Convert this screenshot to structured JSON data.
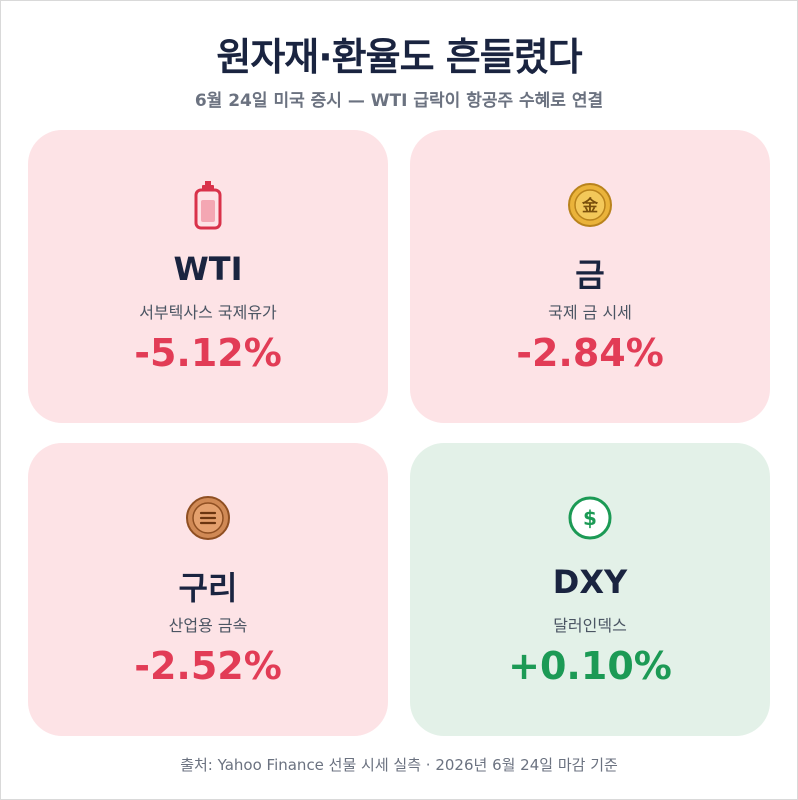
{
  "header": {
    "title": "원자재·환율도 흔들렸다",
    "subtitle": "6월 24일 미국 증시 — WTI 급락이 항공주 수혜로 연결"
  },
  "cards": [
    {
      "name": "WTI",
      "desc": "서부텍사스 국제유가",
      "change": "-5.12%",
      "icon": "battery-icon",
      "tone": "negative"
    },
    {
      "name": "금",
      "desc": "국제 금 시세",
      "change": "-2.84%",
      "icon": "gold-coin-icon",
      "icon_text": "金",
      "tone": "negative"
    },
    {
      "name": "구리",
      "desc": "산업용 금속",
      "change": "-2.52%",
      "icon": "copper-coin-icon",
      "tone": "negative"
    },
    {
      "name": "DXY",
      "desc": "달러인덱스",
      "change": "+0.10%",
      "icon": "dollar-coin-icon",
      "icon_text": "$",
      "tone": "positive"
    }
  ],
  "footer": {
    "source": "출처: Yahoo Finance 선물 시세 실측 · 2026년 6월 24일 마감 기준"
  },
  "colors": {
    "negative_bg": "#fde3e6",
    "positive_bg": "#e3f1e8",
    "negative_text": "#e23c56",
    "positive_text": "#1c9a55",
    "title": "#1a2440"
  }
}
